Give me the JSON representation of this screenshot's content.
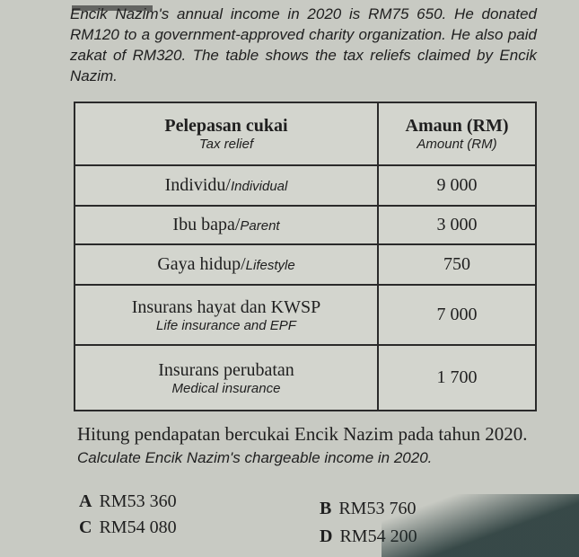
{
  "intro": "Encik Nazim's annual income in 2020 is RM75 650. He donated RM120 to a government-approved charity organization. He also paid zakat of RM320. The table shows the tax reliefs claimed by Encik Nazim.",
  "table": {
    "headers": [
      {
        "ms": "Pelepasan cukai",
        "en": "Tax relief"
      },
      {
        "ms": "Amaun (RM)",
        "en": "Amount (RM)"
      }
    ],
    "rows": [
      {
        "ms": "Individu/",
        "en": "Individual",
        "amount": "9 000"
      },
      {
        "ms": "Ibu bapa/",
        "en": "Parent",
        "amount": "3 000"
      },
      {
        "ms": "Gaya hidup/",
        "en": "Lifestyle",
        "amount": "750"
      },
      {
        "ms": "Insurans hayat dan KWSP",
        "en": "Life insurance and EPF",
        "amount": "7 000"
      },
      {
        "ms": "Insurans perubatan",
        "en": "Medical insurance",
        "amount": "1 700"
      }
    ]
  },
  "question": {
    "ms": "Hitung pendapatan bercukai Encik Nazim pada tahun 2020.",
    "en": "Calculate Encik Nazim's chargeable income in 2020.",
    "options": [
      {
        "letter": "A",
        "text": "RM53 360"
      },
      {
        "letter": "B",
        "text": "RM53 760"
      },
      {
        "letter": "C",
        "text": "RM54 080"
      },
      {
        "letter": "D",
        "text": "RM54 200"
      }
    ]
  }
}
